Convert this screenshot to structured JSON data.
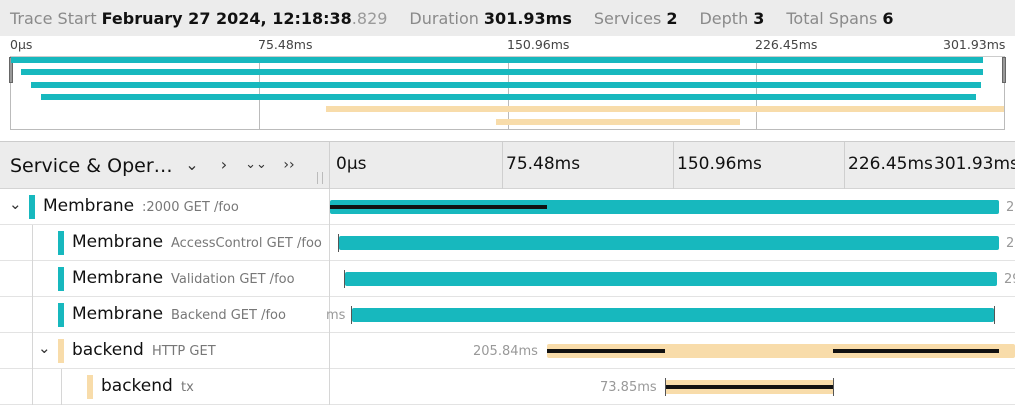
{
  "summary": {
    "trace_start_label": "Trace Start",
    "trace_start_value": "February 27 2024, 12:18:38",
    "trace_start_ms": ".829",
    "duration_label": "Duration",
    "duration_value": "301.93ms",
    "services_label": "Services",
    "services_value": "2",
    "depth_label": "Depth",
    "depth_value": "3",
    "total_spans_label": "Total Spans",
    "total_spans_value": "6"
  },
  "ticks": [
    "0µs",
    "75.48ms",
    "150.96ms",
    "226.45ms",
    "301.93ms"
  ],
  "header": {
    "title": "Service & Oper…",
    "collapse_one": "⌄",
    "expand_one": "›",
    "collapse_all": "⌄⌄",
    "expand_all": "››"
  },
  "colors": {
    "membrane": "#17b8be",
    "backend": "#f8dcaa",
    "critical": "#111111"
  },
  "spans": [
    {
      "service": "Membrane",
      "operation": ":2000 GET /foo",
      "expanded": true,
      "duration_label": "2"
    },
    {
      "service": "Membrane",
      "operation": "AccessControl GET /foo",
      "duration_label": "2"
    },
    {
      "service": "Membrane",
      "operation": "Validation GET /foo",
      "duration_label": "29"
    },
    {
      "service": "Membrane",
      "operation": "Backend GET /foo",
      "duration_label": "ms"
    },
    {
      "service": "backend",
      "operation": "HTTP GET",
      "expanded": true,
      "duration_label": "205.84ms"
    },
    {
      "service": "backend",
      "operation": "tx",
      "duration_label": "73.85ms"
    }
  ]
}
